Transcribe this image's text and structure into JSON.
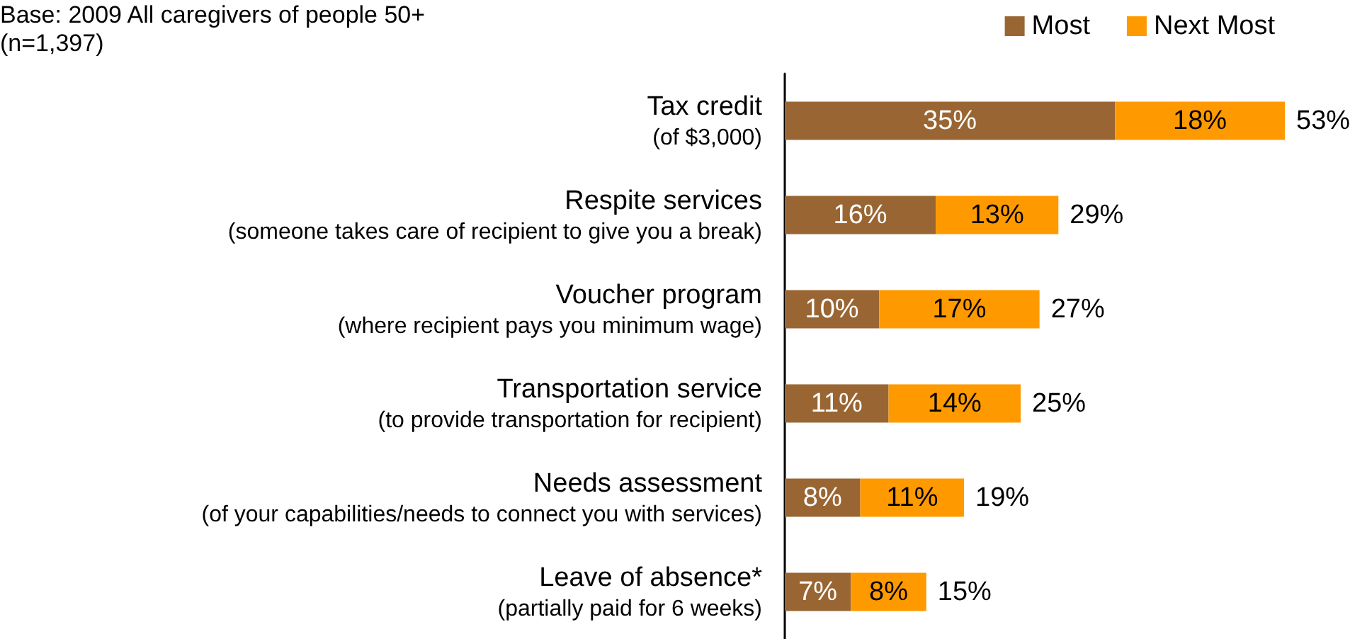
{
  "chart_data": {
    "type": "bar",
    "orientation": "horizontal",
    "stacked": true,
    "categories": [
      "Tax credit\n(of $3,000)",
      "Respite services\n(someone takes care of recipient to give you a break)",
      "Voucher program\n(where recipient pays you minimum wage)",
      "Transportation service\n(to provide transportation for recipient)",
      "Needs assessment\n(of your capabilities/needs to connect you with services)",
      "Leave of absence*\n(partially paid for 6 weeks)"
    ],
    "series": [
      {
        "name": "Most",
        "color": "#996633",
        "values": [
          35,
          16,
          10,
          11,
          8,
          7
        ],
        "value_labels": [
          "35%",
          "16%",
          "10%",
          "11%",
          "8%",
          "7%"
        ]
      },
      {
        "name": "Next Most",
        "color": "#ff9900",
        "values": [
          18,
          13,
          17,
          14,
          11,
          8
        ],
        "value_labels": [
          "18%",
          "13%",
          "17%",
          "14%",
          "11%",
          "8%"
        ]
      }
    ],
    "totals": [
      "53%",
      "29%",
      "27%",
      "25%",
      "19%",
      "15%"
    ],
    "legend": "top right",
    "annotations": [
      "Base: 2009 All caregivers of people 50+",
      "(n=1,397)"
    ]
  }
}
